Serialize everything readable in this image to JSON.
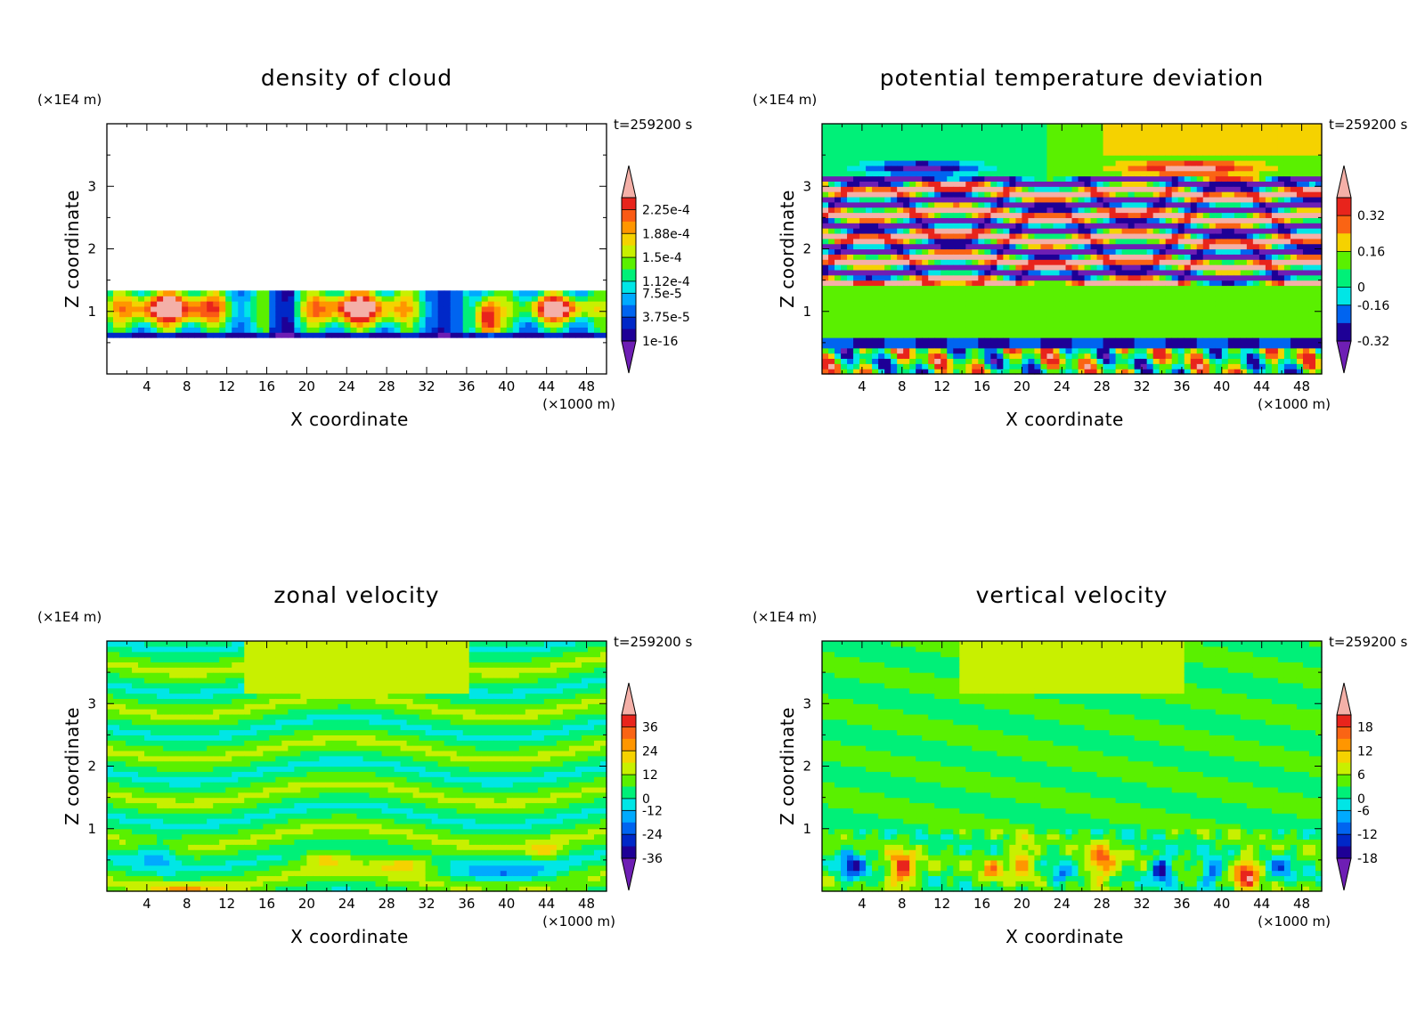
{
  "chart_data": [
    {
      "type": "heatmap",
      "title": "density of cloud",
      "xlabel": "X coordinate",
      "ylabel": "Z coordinate",
      "x_unit": "(×1000 m)",
      "y_unit": "(×1E4 m)",
      "time_label": "t=259200 s",
      "xlim": [
        0,
        50
      ],
      "ylim": [
        0,
        4
      ],
      "x_ticks": [
        "4",
        "8",
        "12",
        "16",
        "20",
        "24",
        "28",
        "32",
        "36",
        "40",
        "44",
        "48"
      ],
      "y_ticks": [
        "1",
        "2",
        "3"
      ],
      "colorbar_labels": [
        "2.25e-4",
        "1.88e-4",
        "1.5e-4",
        "1.12e-4",
        "7.5e-5",
        "3.75e-5",
        "1e-16"
      ],
      "colorbar_colors": [
        "#f4b0a8",
        "#e8241c",
        "#fa5a14",
        "#ff9600",
        "#f5d200",
        "#c8f000",
        "#5af000",
        "#00f078",
        "#00e6e6",
        "#00aaff",
        "#0064f0",
        "#0028c8",
        "#1e0096",
        "#6e1eb4"
      ],
      "description": "cloud layer between z≈0.55 and z≈1.35 (×1E4 m); highest densities in lens-shaped cells around x≈2–12, 20–30 and 40–48"
    },
    {
      "type": "heatmap",
      "title": "potential temperature deviation",
      "xlabel": "X coordinate",
      "ylabel": "Z coordinate",
      "x_unit": "(×1000 m)",
      "y_unit": "(×1E4 m)",
      "time_label": "t=259200 s",
      "xlim": [
        0,
        50
      ],
      "ylim": [
        0,
        4
      ],
      "x_ticks": [
        "4",
        "8",
        "12",
        "16",
        "20",
        "24",
        "28",
        "32",
        "36",
        "40",
        "44",
        "48"
      ],
      "y_ticks": [
        "1",
        "2",
        "3"
      ],
      "colorbar_labels": [
        "0.32",
        "0.16",
        "0",
        "-0.16",
        "-0.32"
      ],
      "colorbar_colors": [
        "#f4b0a8",
        "#e8241c",
        "#fa6414",
        "#f5d200",
        "#5af000",
        "#00f078",
        "#00e6e6",
        "#0064f0",
        "#1e0096",
        "#6e1eb4"
      ],
      "description": "strongly layered alternating positive/negative bands between z≈1.4 and 3.2; near-zero between 0.6 and 1.4; mixed cells below 0.6"
    },
    {
      "type": "heatmap",
      "title": "zonal velocity",
      "xlabel": "X coordinate",
      "ylabel": "Z coordinate",
      "x_unit": "(×1000 m)",
      "y_unit": "(×1E4 m)",
      "time_label": "t=259200 s",
      "xlim": [
        0,
        50
      ],
      "ylim": [
        0,
        4
      ],
      "x_ticks": [
        "4",
        "8",
        "12",
        "16",
        "20",
        "24",
        "28",
        "32",
        "36",
        "40",
        "44",
        "48"
      ],
      "y_ticks": [
        "1",
        "2",
        "3"
      ],
      "colorbar_labels": [
        "36",
        "24",
        "12",
        "0",
        "-12",
        "-24",
        "-36"
      ],
      "colorbar_colors": [
        "#f4b0a8",
        "#e8241c",
        "#fa6414",
        "#ff9600",
        "#f5d200",
        "#c8f000",
        "#5af000",
        "#00f078",
        "#00e6e6",
        "#00aaff",
        "#0064f0",
        "#0028c8",
        "#1e0096",
        "#6e1eb4"
      ],
      "description": "mostly weak values (-6 to 6) in horizontal bands; weak positive blobs near x≈20–24 and 28–34 at z≈0.5"
    },
    {
      "type": "heatmap",
      "title": "vertical velocity",
      "xlabel": "X coordinate",
      "ylabel": "Z coordinate",
      "x_unit": "(×1000 m)",
      "y_unit": "(×1E4 m)",
      "time_label": "t=259200 s",
      "xlim": [
        0,
        50
      ],
      "ylim": [
        0,
        4
      ],
      "x_ticks": [
        "4",
        "8",
        "12",
        "16",
        "20",
        "24",
        "28",
        "32",
        "36",
        "40",
        "44",
        "48"
      ],
      "y_ticks": [
        "1",
        "2",
        "3"
      ],
      "colorbar_labels": [
        "18",
        "12",
        "6",
        "0",
        "-6",
        "-12",
        "-18"
      ],
      "colorbar_colors": [
        "#f4b0a8",
        "#e8241c",
        "#fa6414",
        "#ff9600",
        "#f5d200",
        "#c8f000",
        "#5af000",
        "#00f078",
        "#00e6e6",
        "#00aaff",
        "#0064f0",
        "#0028c8",
        "#1e0096",
        "#6e1eb4"
      ],
      "description": "near-zero aloft; updraft/downdraft cells below z≈1 with maxima near x≈8 and x≈42 and minima near x≈34 and x≈2"
    }
  ]
}
